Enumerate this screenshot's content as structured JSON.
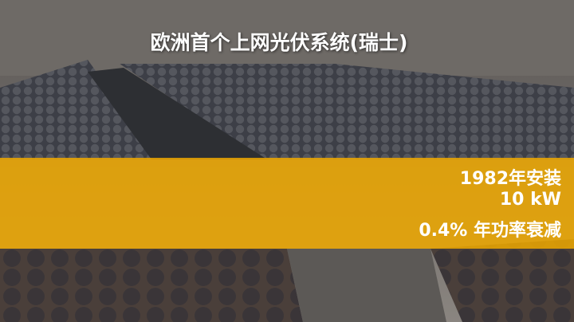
{
  "title": "欧洲首个上网光伏系统(瑞士)",
  "facts": [
    "1982年安装",
    "10 kW",
    "0.4% 年功率衰减"
  ]
}
